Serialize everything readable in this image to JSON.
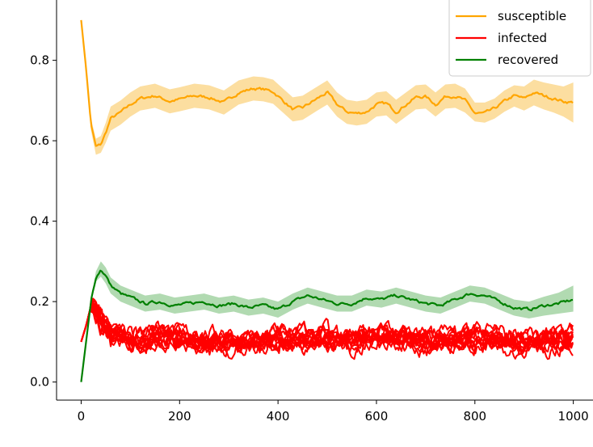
{
  "chart_data": {
    "type": "line",
    "title": "",
    "xlabel": "",
    "ylabel": "",
    "xlim": [
      -50,
      1040
    ],
    "ylim": [
      -0.045,
      0.95
    ],
    "xticks": [
      0,
      200,
      400,
      600,
      800,
      1000
    ],
    "xtick_labels": [
      "0",
      "200",
      "400",
      "600",
      "800",
      "1000"
    ],
    "yticks": [
      0.0,
      0.2,
      0.4,
      0.6,
      0.8
    ],
    "ytick_labels": [
      "0.0",
      "0.2",
      "0.4",
      "0.6",
      "0.8"
    ],
    "grid": false,
    "legend": {
      "placement": "top-right",
      "entries": [
        {
          "label": "susceptible",
          "color": "#ffa500"
        },
        {
          "label": "infected",
          "color": "#ff0000"
        },
        {
          "label": "recovered",
          "color": "#008000"
        }
      ]
    },
    "series": [
      {
        "name": "susceptible",
        "color": "#ffa500",
        "band_color": "#fbd88f",
        "x": [
          0,
          10,
          20,
          30,
          40,
          50,
          60,
          80,
          100,
          120,
          150,
          180,
          200,
          230,
          260,
          290,
          320,
          350,
          370,
          390,
          410,
          430,
          450,
          480,
          500,
          520,
          540,
          560,
          580,
          600,
          620,
          640,
          660,
          680,
          700,
          720,
          740,
          760,
          780,
          800,
          820,
          840,
          860,
          880,
          900,
          920,
          940,
          960,
          980,
          1000
        ],
        "values": [
          0.9,
          0.78,
          0.64,
          0.585,
          0.59,
          0.62,
          0.655,
          0.67,
          0.69,
          0.705,
          0.712,
          0.698,
          0.703,
          0.712,
          0.708,
          0.695,
          0.72,
          0.73,
          0.728,
          0.722,
          0.7,
          0.678,
          0.682,
          0.705,
          0.72,
          0.69,
          0.672,
          0.668,
          0.672,
          0.69,
          0.693,
          0.672,
          0.69,
          0.708,
          0.71,
          0.69,
          0.71,
          0.712,
          0.7,
          0.668,
          0.668,
          0.68,
          0.698,
          0.712,
          0.705,
          0.72,
          0.712,
          0.705,
          0.698,
          0.695
        ],
        "band_lower": [
          0.9,
          0.775,
          0.625,
          0.565,
          0.57,
          0.595,
          0.625,
          0.64,
          0.66,
          0.675,
          0.682,
          0.668,
          0.673,
          0.682,
          0.678,
          0.665,
          0.69,
          0.7,
          0.698,
          0.692,
          0.67,
          0.648,
          0.652,
          0.675,
          0.69,
          0.66,
          0.642,
          0.638,
          0.642,
          0.66,
          0.663,
          0.642,
          0.66,
          0.678,
          0.68,
          0.66,
          0.68,
          0.682,
          0.67,
          0.648,
          0.645,
          0.655,
          0.672,
          0.685,
          0.675,
          0.688,
          0.678,
          0.67,
          0.66,
          0.645
        ],
        "band_upper": [
          0.9,
          0.785,
          0.655,
          0.605,
          0.612,
          0.645,
          0.685,
          0.7,
          0.72,
          0.735,
          0.742,
          0.728,
          0.733,
          0.742,
          0.738,
          0.725,
          0.75,
          0.76,
          0.758,
          0.752,
          0.73,
          0.708,
          0.712,
          0.735,
          0.75,
          0.72,
          0.702,
          0.698,
          0.702,
          0.72,
          0.723,
          0.702,
          0.72,
          0.738,
          0.74,
          0.72,
          0.74,
          0.742,
          0.73,
          0.695,
          0.695,
          0.705,
          0.725,
          0.738,
          0.735,
          0.752,
          0.745,
          0.74,
          0.735,
          0.745
        ]
      },
      {
        "name": "recovered",
        "color": "#008000",
        "band_color": "#a3d3a3",
        "x": [
          0,
          10,
          20,
          30,
          40,
          50,
          60,
          80,
          100,
          130,
          160,
          190,
          220,
          250,
          280,
          310,
          340,
          370,
          400,
          430,
          460,
          490,
          520,
          550,
          580,
          610,
          640,
          670,
          700,
          730,
          760,
          790,
          820,
          850,
          880,
          910,
          940,
          970,
          1000
        ],
        "values": [
          0.0,
          0.1,
          0.2,
          0.26,
          0.28,
          0.265,
          0.24,
          0.22,
          0.21,
          0.195,
          0.2,
          0.19,
          0.195,
          0.2,
          0.19,
          0.195,
          0.185,
          0.19,
          0.18,
          0.2,
          0.215,
          0.205,
          0.195,
          0.195,
          0.21,
          0.205,
          0.215,
          0.205,
          0.195,
          0.19,
          0.205,
          0.22,
          0.215,
          0.2,
          0.185,
          0.18,
          0.19,
          0.195,
          0.205
        ],
        "band_lower": [
          0.0,
          0.1,
          0.195,
          0.25,
          0.262,
          0.245,
          0.22,
          0.2,
          0.19,
          0.175,
          0.18,
          0.17,
          0.175,
          0.18,
          0.17,
          0.175,
          0.165,
          0.17,
          0.16,
          0.18,
          0.195,
          0.185,
          0.175,
          0.175,
          0.19,
          0.185,
          0.195,
          0.185,
          0.175,
          0.17,
          0.185,
          0.2,
          0.195,
          0.18,
          0.165,
          0.158,
          0.165,
          0.17,
          0.175
        ],
        "band_upper": [
          0.0,
          0.1,
          0.205,
          0.275,
          0.3,
          0.285,
          0.26,
          0.24,
          0.23,
          0.215,
          0.22,
          0.21,
          0.215,
          0.22,
          0.21,
          0.215,
          0.205,
          0.21,
          0.2,
          0.22,
          0.235,
          0.225,
          0.215,
          0.215,
          0.23,
          0.225,
          0.235,
          0.225,
          0.215,
          0.21,
          0.225,
          0.24,
          0.235,
          0.22,
          0.205,
          0.2,
          0.212,
          0.222,
          0.24
        ]
      },
      {
        "name": "infected",
        "color": "#ff0000",
        "x": [
          0,
          10,
          20,
          30,
          40,
          50,
          60,
          80,
          100,
          130,
          160,
          200,
          250,
          300,
          350,
          400,
          450,
          500,
          550,
          600,
          650,
          700,
          750,
          800,
          850,
          900,
          950,
          1000
        ],
        "values": [
          0.1,
          0.14,
          0.19,
          0.18,
          0.16,
          0.14,
          0.125,
          0.115,
          0.11,
          0.105,
          0.11,
          0.105,
          0.1,
          0.1,
          0.1,
          0.105,
          0.11,
          0.11,
          0.105,
          0.11,
          0.105,
          0.1,
          0.105,
          0.11,
          0.105,
          0.1,
          0.1,
          0.105
        ],
        "run_spread": 0.045,
        "run_count": 12
      }
    ]
  }
}
